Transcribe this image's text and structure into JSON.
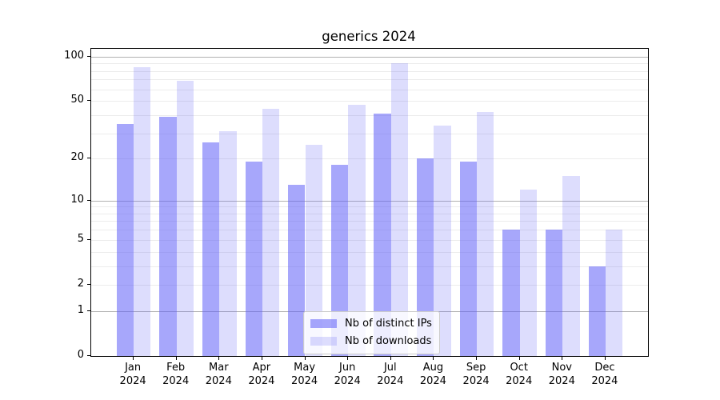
{
  "chart_data": {
    "type": "bar",
    "title": "generics 2024",
    "categories": [
      "Jan 2024",
      "Feb 2024",
      "Mar 2024",
      "Apr 2024",
      "May 2024",
      "Jun 2024",
      "Jul 2024",
      "Aug 2024",
      "Sep 2024",
      "Oct 2024",
      "Nov 2024",
      "Dec 2024"
    ],
    "series": [
      {
        "name": "Nb of distinct IPs",
        "color": "rgba(98,98,248,0.56)",
        "values": [
          35,
          39,
          26,
          19,
          13,
          18,
          41,
          20,
          19,
          6,
          6,
          3
        ]
      },
      {
        "name": "Nb of downloads",
        "color": "rgba(98,98,248,0.22)",
        "values": [
          85,
          69,
          31,
          44,
          25,
          47,
          90,
          34,
          42,
          12,
          15,
          6
        ]
      }
    ],
    "xlabel": "",
    "ylabel": "",
    "yscale": "log1p",
    "ylim": [
      0,
      113
    ],
    "y_tick_labels": [
      100,
      50,
      20,
      10,
      5,
      2,
      1,
      0
    ],
    "y_major_gridlines": [
      1,
      10,
      100
    ],
    "y_minor_gridlines": [
      2,
      3,
      4,
      5,
      6,
      7,
      8,
      9,
      20,
      30,
      40,
      50,
      60,
      70,
      80,
      90
    ],
    "grid": true,
    "legend": {
      "position": "lower center",
      "entries": [
        "Nb of distinct IPs",
        "Nb of downloads"
      ]
    },
    "colors": {
      "major_grid": "#b2b2b2",
      "minor_grid": "#ebebeb",
      "spine": "#000000",
      "text": "#000000",
      "legend_border": "#cccccc",
      "legend_bg": "rgba(255,255,255,0.8)"
    }
  }
}
